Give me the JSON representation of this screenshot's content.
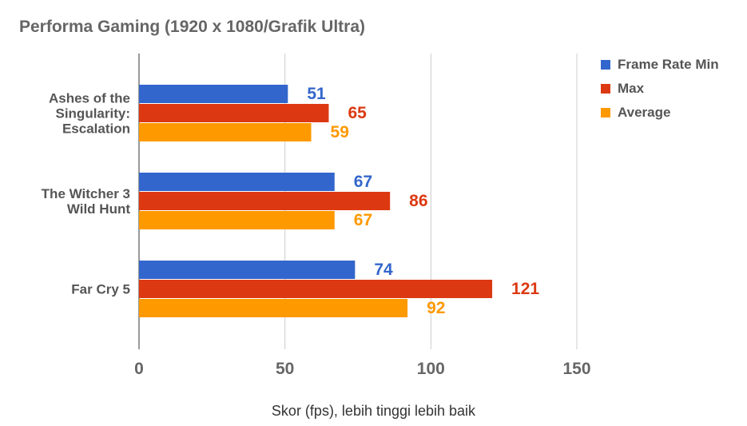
{
  "chart_data": {
    "type": "bar",
    "orientation": "horizontal",
    "title": "Performa Gaming (1920 x 1080/Grafik Ultra)",
    "xlabel": "Skor (fps), lebih tinggi lebih baik",
    "ylabel": "",
    "xlim": [
      0,
      150
    ],
    "xticks": [
      0,
      50,
      100,
      150
    ],
    "grid": true,
    "legend_position": "right",
    "categories": [
      [
        "Ashes of the",
        "Singularity:",
        "Escalation"
      ],
      [
        "The Witcher 3",
        "Wild Hunt"
      ],
      [
        "Far Cry 5"
      ]
    ],
    "series": [
      {
        "name": "Frame Rate Min",
        "color": "#3366cc",
        "values": [
          51,
          67,
          74
        ]
      },
      {
        "name": "Max",
        "color": "#dc3912",
        "values": [
          65,
          86,
          121
        ]
      },
      {
        "name": "Average",
        "color": "#ff9900",
        "values": [
          59,
          67,
          92
        ]
      }
    ]
  }
}
